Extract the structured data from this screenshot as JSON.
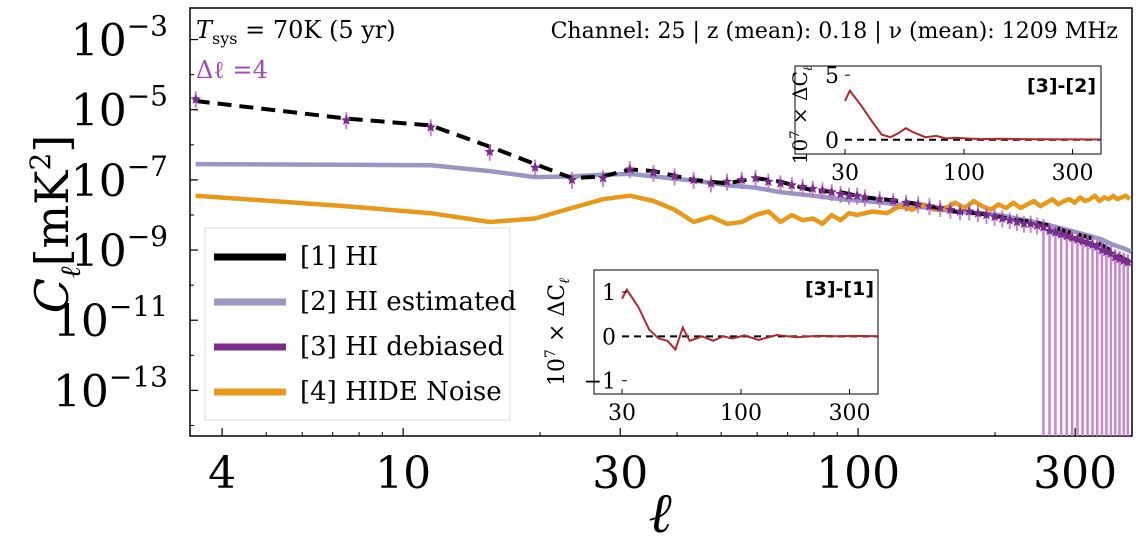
{
  "chart_data": [
    {
      "type": "line",
      "xscale": "log",
      "yscale": "log",
      "xlim": [
        3.4,
        400
      ],
      "ylim_exp": [
        -14.3,
        -2.1
      ],
      "xticks": [
        {
          "v": 4,
          "label": "4"
        },
        {
          "v": 10,
          "label": "10"
        },
        {
          "v": 30,
          "label": "30"
        },
        {
          "v": 100,
          "label": "100"
        },
        {
          "v": 300,
          "label": "300"
        }
      ],
      "yticks": [
        {
          "e": -3,
          "base": "10",
          "exp": "−3"
        },
        {
          "e": -5,
          "base": "10",
          "exp": "−5"
        },
        {
          "e": -7,
          "base": "10",
          "exp": "−7"
        },
        {
          "e": -9,
          "base": "10",
          "exp": "−9"
        },
        {
          "e": -11,
          "base": "10",
          "exp": "−11"
        },
        {
          "e": -13,
          "base": "10",
          "exp": "−13"
        }
      ],
      "xlabel": "ℓ",
      "ylabel": {
        "main": "C",
        "sub": "ℓ",
        "unit": "[mK",
        "unit_sup": "2",
        "unit_close": "]"
      },
      "annotation_tsys": {
        "main": "T",
        "sub": "sys",
        "rest": " = 70K (5 yr)"
      },
      "annotation_channel": "Channel: 25 | z (mean): 0.18 | ν (mean): 1209 MHz",
      "annotation_dl": "Δℓ =4",
      "legend_position": "lower-left",
      "series": [
        {
          "name": "[1] HI",
          "color": "#000000",
          "dashed": true,
          "x": [
            3.5,
            7.5,
            11.5,
            15.5,
            19.5,
            23.5,
            27.5,
            31.5,
            35.5,
            43.5,
            51.5,
            59.5,
            67.5,
            79.5,
            91.5,
            103.5,
            123.5,
            143.5,
            163.5,
            183.5,
            203.5,
            223.5,
            243.5,
            263.5,
            283.5,
            303.5,
            323.5,
            343.5,
            363.5,
            383.5,
            399
          ],
          "log10y": [
            -4.75,
            -5.25,
            -5.45,
            -6.05,
            -6.55,
            -6.95,
            -6.9,
            -6.7,
            -6.75,
            -7.0,
            -7.1,
            -6.95,
            -7.05,
            -7.3,
            -7.35,
            -7.5,
            -7.6,
            -7.75,
            -7.9,
            -7.95,
            -8.05,
            -8.15,
            -8.2,
            -8.3,
            -8.45,
            -8.55,
            -8.65,
            -8.85,
            -9.05,
            -9.25,
            -9.35
          ]
        },
        {
          "name": "[2] HI estimated",
          "color": "#9896c4",
          "x": [
            3.5,
            7.5,
            11.5,
            15.5,
            19.5,
            23.5,
            27.5,
            31.5,
            35.5,
            43.5,
            51.5,
            59.5,
            67.5,
            79.5,
            91.5,
            103.5,
            123.5,
            143.5,
            163.5,
            183.5,
            203.5,
            223.5,
            243.5,
            263.5,
            283.5,
            303.5,
            323.5,
            343.5,
            363.5,
            383.5,
            399
          ],
          "log10y": [
            -6.55,
            -6.57,
            -6.58,
            -6.75,
            -6.92,
            -6.9,
            -6.85,
            -6.83,
            -6.9,
            -7.02,
            -7.15,
            -7.22,
            -7.35,
            -7.45,
            -7.55,
            -7.6,
            -7.7,
            -7.8,
            -7.9,
            -7.95,
            -8.0,
            -8.1,
            -8.2,
            -8.3,
            -8.4,
            -8.5,
            -8.6,
            -8.7,
            -8.85,
            -8.95,
            -9.05
          ]
        },
        {
          "name": "[3] HI debiased",
          "color": "#7b2d8e",
          "x": [
            3.5,
            7.5,
            11.5,
            15.5,
            19.5,
            23.5,
            27.5,
            31.5,
            35.5,
            39.5,
            43.5,
            47.5,
            51.5,
            55.5,
            59.5,
            63.5,
            67.5,
            71.5,
            75.5,
            79.5,
            83.5,
            87.5,
            91.5,
            95.5,
            99.5,
            103.5,
            111.5,
            119.5,
            127.5,
            135.5,
            143.5,
            151.5,
            159.5,
            167.5,
            175.5,
            183.5,
            191.5,
            199.5,
            207.5,
            215.5,
            223.5,
            231.5,
            239.5,
            247.5,
            255.5,
            263.5,
            271.5,
            279.5,
            287.5,
            295.5,
            303.5,
            311.5,
            319.5,
            327.5,
            335.5,
            343.5,
            351.5,
            359.5,
            367.5,
            375.5,
            383.5,
            391.5
          ],
          "log10y": [
            -4.7,
            -5.3,
            -5.5,
            -6.2,
            -6.65,
            -7.0,
            -6.95,
            -6.7,
            -6.8,
            -6.9,
            -7.0,
            -7.1,
            -7.05,
            -7.0,
            -6.95,
            -7.05,
            -7.1,
            -7.15,
            -7.2,
            -7.25,
            -7.3,
            -7.35,
            -7.4,
            -7.45,
            -7.45,
            -7.5,
            -7.55,
            -7.6,
            -7.65,
            -7.7,
            -7.75,
            -7.8,
            -7.85,
            -7.9,
            -7.9,
            -7.95,
            -8.0,
            -8.05,
            -8.1,
            -8.15,
            -8.2,
            -8.25,
            -8.25,
            -8.3,
            -8.35,
            -8.45,
            -8.5,
            -8.55,
            -8.6,
            -8.65,
            -8.7,
            -8.75,
            -8.8,
            -8.85,
            -8.9,
            -9.0,
            -9.05,
            -9.1,
            -9.2,
            -9.25,
            -9.3,
            -9.35
          ]
        },
        {
          "name": "[4] HIDE Noise",
          "color": "#e8991a",
          "x": [
            3.5,
            7.5,
            11.5,
            15.5,
            19.5,
            23.5,
            27.5,
            31.5,
            35.5,
            39.5,
            43.5,
            47.5,
            51.5,
            55.5,
            59.5,
            63.5,
            67.5,
            71.5,
            75.5,
            79.5,
            83.5,
            87.5,
            91.5,
            95.5,
            99.5,
            107.5,
            115.5,
            123.5,
            131.5,
            139.5,
            147.5,
            155.5,
            163.5,
            171.5,
            179.5,
            187.5,
            195.5,
            203.5,
            211.5,
            219.5,
            227.5,
            235.5,
            243.5,
            251.5,
            259.5,
            267.5,
            275.5,
            283.5,
            291.5,
            299.5,
            307.5,
            315.5,
            323.5,
            331.5,
            339.5,
            347.5,
            355.5,
            363.5,
            371.5,
            379.5,
            387.5,
            395.5
          ],
          "log10y": [
            -7.45,
            -7.75,
            -7.95,
            -8.2,
            -8.1,
            -7.8,
            -7.55,
            -7.45,
            -7.6,
            -7.85,
            -8.2,
            -8.05,
            -8.25,
            -8.2,
            -8.0,
            -7.9,
            -8.2,
            -8.0,
            -8.15,
            -8.1,
            -8.25,
            -8.0,
            -8.15,
            -7.95,
            -8.0,
            -7.9,
            -7.95,
            -7.75,
            -7.85,
            -7.7,
            -7.85,
            -7.8,
            -7.65,
            -7.8,
            -7.6,
            -7.75,
            -7.85,
            -7.7,
            -7.8,
            -7.65,
            -7.8,
            -7.7,
            -7.6,
            -7.75,
            -7.65,
            -7.55,
            -7.7,
            -7.6,
            -7.55,
            -7.65,
            -7.5,
            -7.6,
            -7.55,
            -7.45,
            -7.6,
            -7.5,
            -7.55,
            -7.45,
            -7.55,
            -7.5,
            -7.45,
            -7.55
          ]
        }
      ]
    },
    {
      "type": "line",
      "xscale": "log",
      "title": "[3]-[2]",
      "xlim": [
        30,
        400
      ],
      "ylim": [
        -1.1,
        5.4
      ],
      "xticks": [
        {
          "v": 30,
          "label": "30"
        },
        {
          "v": 100,
          "label": "100"
        },
        {
          "v": 300,
          "label": "300"
        }
      ],
      "yticks": [
        {
          "v": 0,
          "label": "0"
        },
        {
          "v": 5,
          "label": "5"
        }
      ],
      "ylabel": {
        "pre": "10",
        "sup": "7",
        "rest": " × ΔC",
        "sub": "ℓ"
      },
      "series": [
        {
          "color": "#b2282c",
          "x": [
            30,
            31.5,
            35.5,
            39.5,
            43.5,
            47.5,
            51.5,
            55.5,
            59.5,
            63.5,
            67.5,
            75.5,
            83.5,
            91.5,
            103.5,
            119.5,
            143.5,
            175.5,
            215.5,
            263.5,
            323.5,
            399
          ],
          "y": [
            3.0,
            3.8,
            2.6,
            1.4,
            0.4,
            0.2,
            0.5,
            0.9,
            0.6,
            0.4,
            0.2,
            0.3,
            0.1,
            0.15,
            0.1,
            0.05,
            0.08,
            0.05,
            0.04,
            0.03,
            0.03,
            0.02
          ]
        }
      ]
    },
    {
      "type": "line",
      "xscale": "log",
      "title": "[3]-[1]",
      "xlim": [
        30,
        400
      ],
      "ylim": [
        -1.3,
        1.45
      ],
      "xticks": [
        {
          "v": 30,
          "label": "30"
        },
        {
          "v": 100,
          "label": "100"
        },
        {
          "v": 300,
          "label": "300"
        }
      ],
      "yticks": [
        {
          "v": -1,
          "label": "−1"
        },
        {
          "v": 0,
          "label": "0"
        },
        {
          "v": 1,
          "label": "1"
        }
      ],
      "ylabel": {
        "pre": "10",
        "sup": "7",
        "rest": " × ΔC",
        "sub": "ℓ"
      },
      "series": [
        {
          "color": "#b2282c",
          "x": [
            30,
            31.5,
            35.5,
            39.5,
            43.5,
            47.5,
            51.5,
            55.5,
            59.5,
            63.5,
            67.5,
            75.5,
            83.5,
            91.5,
            103.5,
            119.5,
            143.5,
            175.5,
            215.5,
            263.5,
            323.5,
            399
          ],
          "y": [
            0.85,
            1.05,
            0.65,
            0.15,
            -0.05,
            -0.1,
            -0.3,
            0.2,
            -0.1,
            -0.05,
            0.0,
            -0.1,
            0.0,
            -0.05,
            0.02,
            -0.08,
            0.03,
            -0.02,
            0.01,
            0.0,
            0.01,
            0.0
          ]
        }
      ]
    }
  ]
}
